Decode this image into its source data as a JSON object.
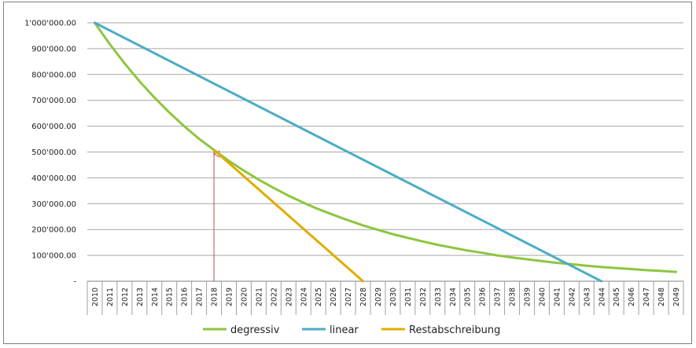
{
  "chart_data": {
    "type": "line",
    "title": "",
    "xlabel": "",
    "ylabel": "",
    "ylim": [
      0,
      1000000
    ],
    "y_ticks": [
      {
        "value": 0,
        "label": "-"
      },
      {
        "value": 100000,
        "label": "100'000.00"
      },
      {
        "value": 200000,
        "label": "200'000.00"
      },
      {
        "value": 300000,
        "label": "300'000.00"
      },
      {
        "value": 400000,
        "label": "400'000.00"
      },
      {
        "value": 500000,
        "label": "500'000.00"
      },
      {
        "value": 600000,
        "label": "600'000.00"
      },
      {
        "value": 700000,
        "label": "700'000.00"
      },
      {
        "value": 800000,
        "label": "800'000.00"
      },
      {
        "value": 900000,
        "label": "900'000.00"
      },
      {
        "value": 1000000,
        "label": "1'000'000.00"
      }
    ],
    "categories": [
      "2010",
      "2011",
      "2012",
      "2013",
      "2014",
      "2015",
      "2016",
      "2017",
      "2018",
      "2019",
      "2020",
      "2021",
      "2022",
      "2023",
      "2024",
      "2025",
      "2026",
      "2027",
      "2028",
      "2029",
      "2030",
      "2031",
      "2032",
      "2033",
      "2034",
      "2035",
      "2036",
      "2037",
      "2038",
      "2039",
      "2040",
      "2041",
      "2042",
      "2043",
      "2044",
      "2045",
      "2046",
      "2047",
      "2048",
      "2049"
    ],
    "grid": true,
    "legend_position": "bottom",
    "series": [
      {
        "name": "degressiv",
        "color": "#8dc63f",
        "x": [
          "2010",
          "2011",
          "2012",
          "2013",
          "2014",
          "2015",
          "2016",
          "2017",
          "2018",
          "2019",
          "2020",
          "2021",
          "2022",
          "2023",
          "2024",
          "2025",
          "2026",
          "2027",
          "2028",
          "2029",
          "2030",
          "2031",
          "2032",
          "2033",
          "2034",
          "2035",
          "2036",
          "2037",
          "2038",
          "2039",
          "2040",
          "2041",
          "2042",
          "2043",
          "2044",
          "2045",
          "2046",
          "2047",
          "2048",
          "2049"
        ],
        "values": [
          1000000,
          918000,
          843000,
          774000,
          711000,
          653000,
          600000,
          551000,
          508000,
          466000,
          428000,
          393000,
          361000,
          331000,
          304000,
          279000,
          257000,
          236000,
          216000,
          199000,
          182000,
          168000,
          154000,
          141000,
          130000,
          119000,
          110000,
          100000,
          92000,
          85000,
          78000,
          71000,
          66000,
          60000,
          55000,
          51000,
          47000,
          43000,
          40000,
          36000
        ]
      },
      {
        "name": "linear",
        "color": "#4bacc6",
        "x": [
          "2010",
          "2044"
        ],
        "values": [
          1000000,
          0
        ]
      },
      {
        "name": "Restabschreibung",
        "color": "#e0ac00",
        "x": [
          "2018",
          "2028"
        ],
        "values": [
          508000,
          0
        ]
      }
    ],
    "annotations": [
      {
        "type": "arrow",
        "x": "2018",
        "from": 0,
        "to": 508000,
        "color": "#c0504d"
      }
    ]
  }
}
